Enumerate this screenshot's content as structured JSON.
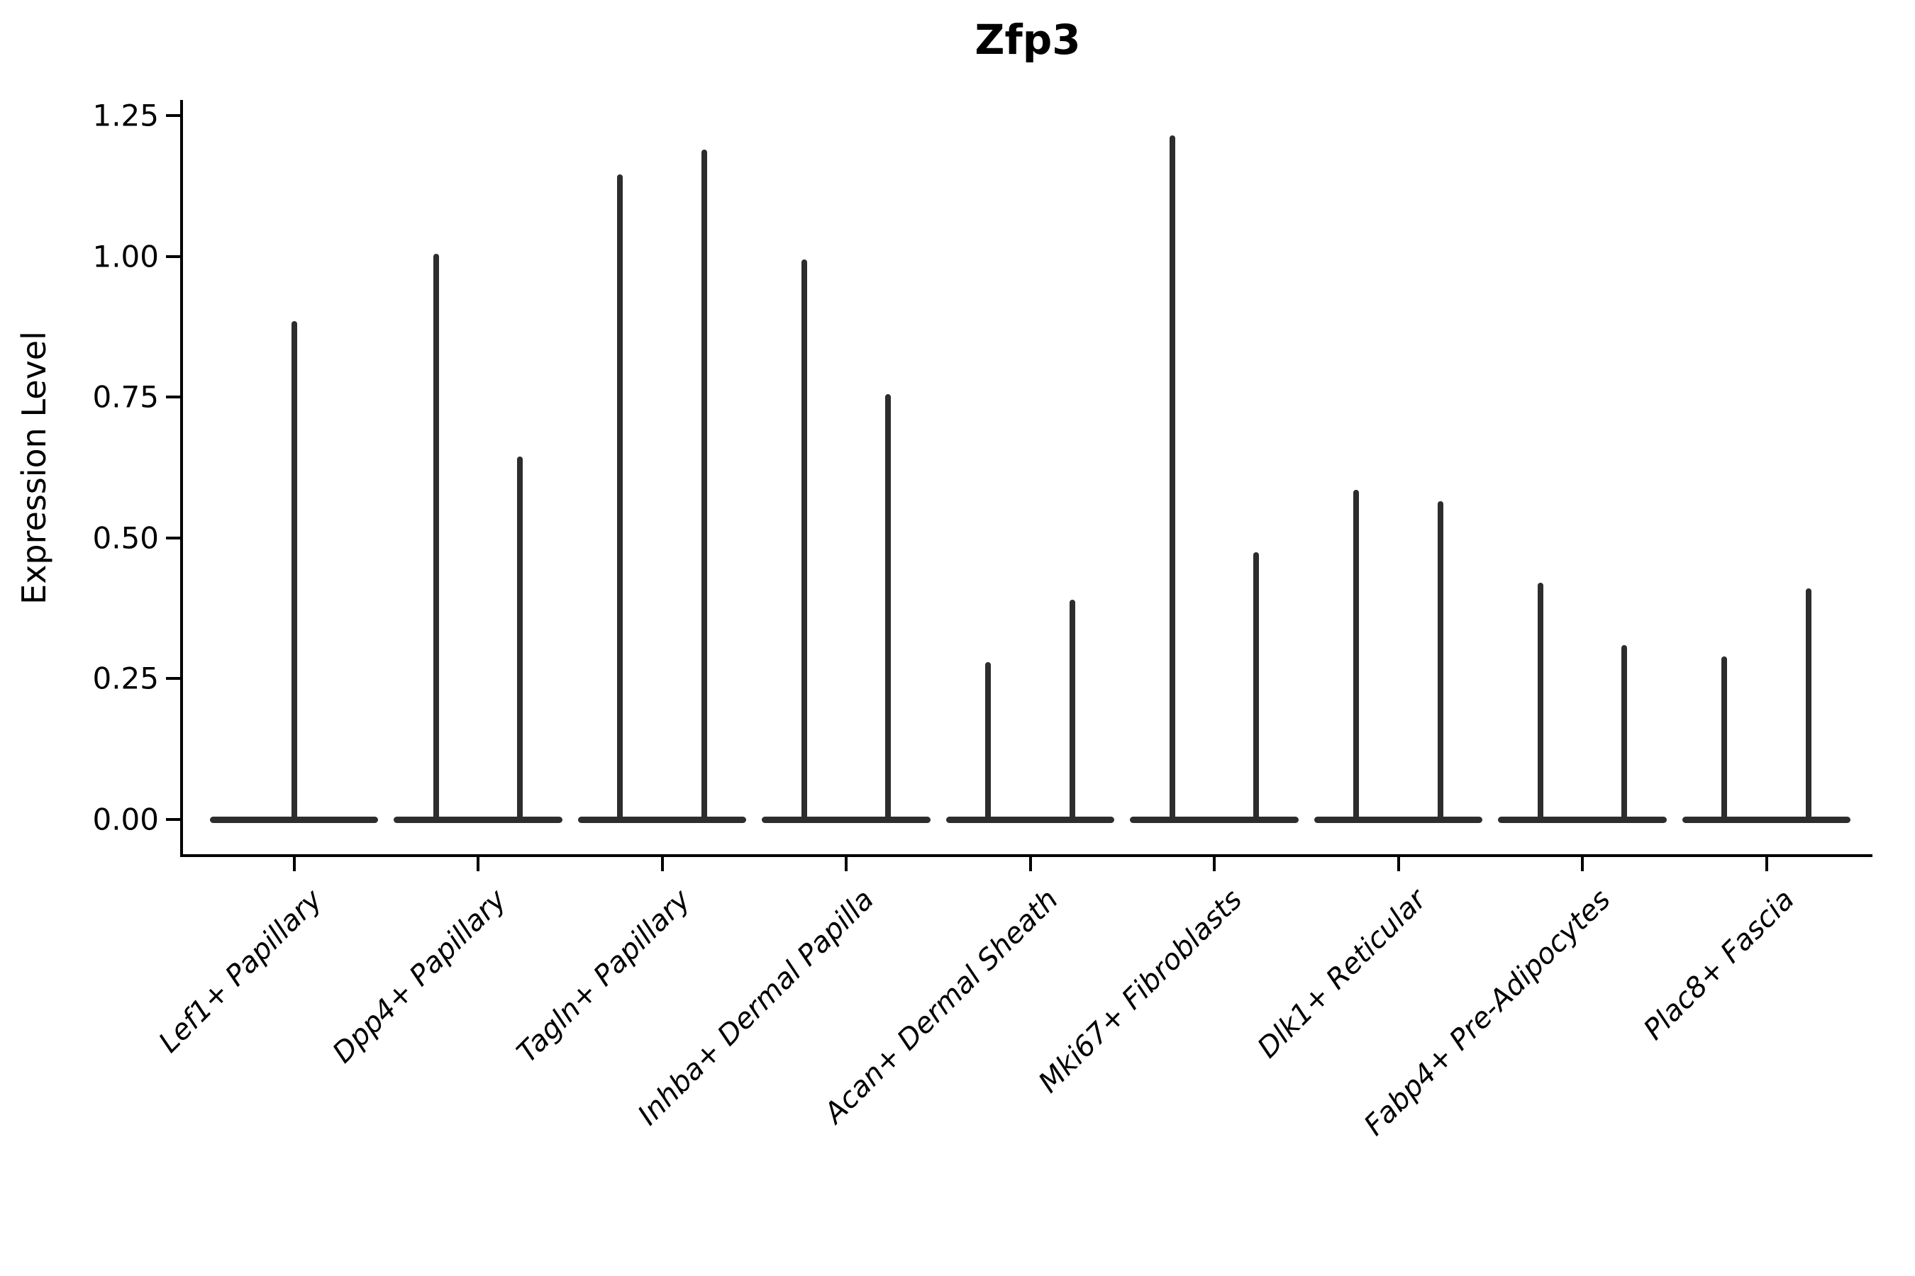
{
  "page": {
    "title": "Zfp3"
  },
  "chart_data": {
    "type": "violin",
    "title": "Zfp3",
    "xlabel": "",
    "ylabel": "Expression Level",
    "ytick_labels": [
      "0.00",
      "0.25",
      "0.50",
      "0.75",
      "1.00",
      "1.25"
    ],
    "ytick_values": [
      0.0,
      0.25,
      0.5,
      0.75,
      1.0,
      1.25
    ],
    "ylim": [
      -0.067,
      1.283
    ],
    "grid": "off",
    "legend": "none",
    "line_color": "#2d2d2d",
    "categories": [
      "Lef1+ Papillary",
      "Dpp4+ Papillary",
      "Tagln+ Papillary",
      "Inhba+ Dermal Papilla",
      "Acan+ Dermal Sheath",
      "Mki67+ Fibroblasts",
      "Dlk1+ Reticular",
      "Fabp4+ Pre-Adipocytes",
      "Plac8+ Fascia"
    ],
    "base_halfwidth": 0.4585,
    "violins": [
      {
        "category": "Lef1+ Papillary",
        "spikes": [
          {
            "offset": 0.0,
            "max": 0.885
          }
        ]
      },
      {
        "category": "Dpp4+ Papillary",
        "spikes": [
          {
            "offset": -0.2275,
            "max": 1.005
          },
          {
            "offset": 0.2275,
            "max": 0.645
          }
        ]
      },
      {
        "category": "Tagln+ Papillary",
        "spikes": [
          {
            "offset": -0.2275,
            "max": 1.145
          },
          {
            "offset": 0.2275,
            "max": 1.19
          }
        ]
      },
      {
        "category": "Inhba+ Dermal Papilla",
        "spikes": [
          {
            "offset": -0.2275,
            "max": 0.995
          },
          {
            "offset": 0.2275,
            "max": 0.755
          }
        ]
      },
      {
        "category": "Acan+ Dermal Sheath",
        "spikes": [
          {
            "offset": -0.2275,
            "max": 0.28
          },
          {
            "offset": 0.2275,
            "max": 0.39
          }
        ]
      },
      {
        "category": "Mki67+ Fibroblasts",
        "spikes": [
          {
            "offset": -0.2275,
            "max": 1.215
          },
          {
            "offset": 0.2275,
            "max": 0.475
          }
        ]
      },
      {
        "category": "Dlk1+ Reticular",
        "spikes": [
          {
            "offset": -0.2275,
            "max": 0.585
          },
          {
            "offset": 0.2275,
            "max": 0.565
          }
        ]
      },
      {
        "category": "Fabp4+ Pre-Adipocytes",
        "spikes": [
          {
            "offset": -0.2275,
            "max": 0.42
          },
          {
            "offset": 0.2275,
            "max": 0.31
          }
        ]
      },
      {
        "category": "Plac8+ Fascia",
        "spikes": [
          {
            "offset": -0.2275,
            "max": 0.29
          },
          {
            "offset": 0.2275,
            "max": 0.41
          }
        ]
      }
    ]
  }
}
